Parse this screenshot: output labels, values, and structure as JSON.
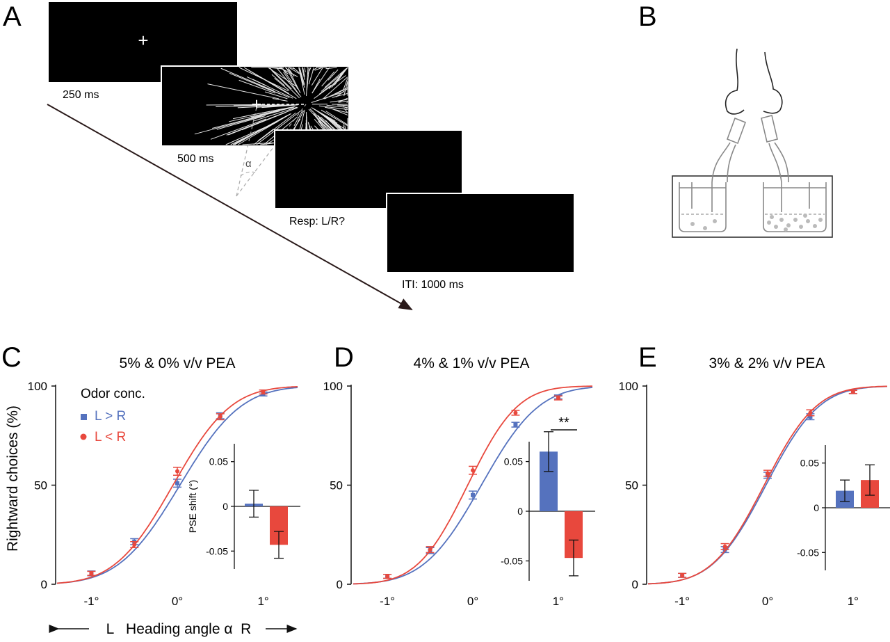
{
  "panel_letters": {
    "a": "A",
    "b": "B",
    "c": "C",
    "d": "D",
    "e": "E"
  },
  "timeline": {
    "fixation_duration": "250 ms",
    "stimulus_duration": "500 ms",
    "response_label": "Resp: L/R?",
    "iti_label": "ITI: 1000 ms",
    "angle_symbol": "α",
    "fixation_symbol": "+"
  },
  "axis": {
    "y_label": "Rightward choices (%)",
    "x_label": "L   Heading angle α  R",
    "y_ticks": [
      "0",
      "50",
      "100"
    ],
    "x_ticks": [
      "-1°",
      "0°",
      "1°"
    ],
    "inset_y_label": "PSE shift (°)",
    "inset_ticks": [
      "0.05",
      "0",
      "-0.05"
    ]
  },
  "legend": {
    "title": "Odor conc.",
    "blue_label": "L > R",
    "red_label": "L < R"
  },
  "colors": {
    "blue": "#5572be",
    "red": "#e8483d",
    "axis": "#111111"
  },
  "significance": "**",
  "chart_data": [
    {
      "type": "line",
      "title": "5% & 0% v/v PEA",
      "xlabel": "Heading angle α",
      "ylabel": "Rightward choices (%)",
      "xlim": [
        -1.4,
        1.4
      ],
      "ylim": [
        0,
        100
      ],
      "series": [
        {
          "name": "L > R",
          "color": "#5572be",
          "x": [
            -1.0,
            -0.5,
            0.0,
            0.5,
            1.0
          ],
          "y": [
            5.5,
            21.5,
            51.0,
            85.0,
            96.0
          ],
          "err": [
            1.2,
            1.5,
            2.0,
            1.5,
            1.0
          ],
          "fit": {
            "mu": 0.03,
            "sigma": 0.56
          }
        },
        {
          "name": "L < R",
          "color": "#e8483d",
          "x": [
            -1.0,
            -0.5,
            0.0,
            0.5,
            1.0
          ],
          "y": [
            5.5,
            20.0,
            57.0,
            84.5,
            97.0
          ],
          "err": [
            1.0,
            1.5,
            2.0,
            1.5,
            1.0
          ],
          "fit": {
            "mu": -0.05,
            "sigma": 0.53
          }
        }
      ],
      "inset": {
        "type": "bar",
        "ylabel": "PSE shift (°)",
        "ylim": [
          -0.07,
          0.07
        ],
        "bars": [
          {
            "name": "L > R",
            "value": 0.003,
            "err": 0.015,
            "color": "#5572be"
          },
          {
            "name": "L < R",
            "value": -0.043,
            "err": 0.015,
            "color": "#e8483d"
          }
        ]
      }
    },
    {
      "type": "line",
      "title": "4% & 1% v/v PEA",
      "xlabel": "Heading angle α",
      "ylabel": "Rightward choices (%)",
      "xlim": [
        -1.4,
        1.4
      ],
      "ylim": [
        0,
        100
      ],
      "series": [
        {
          "name": "L > R",
          "color": "#5572be",
          "x": [
            -1.0,
            -0.5,
            0.0,
            0.5,
            1.0
          ],
          "y": [
            4.0,
            17.0,
            45.0,
            80.5,
            94.5
          ],
          "err": [
            1.0,
            1.5,
            2.0,
            1.2,
            1.0
          ],
          "fit": {
            "mu": 0.1,
            "sigma": 0.53
          }
        },
        {
          "name": "L < R",
          "color": "#e8483d",
          "x": [
            -1.0,
            -0.5,
            0.0,
            0.5,
            1.0
          ],
          "y": [
            4.0,
            17.5,
            57.5,
            86.5,
            94.0
          ],
          "err": [
            1.0,
            1.5,
            2.0,
            1.2,
            1.0
          ],
          "fit": {
            "mu": -0.06,
            "sigma": 0.46
          }
        }
      ],
      "inset": {
        "type": "bar",
        "ylabel": "",
        "ylim": [
          -0.07,
          0.07
        ],
        "bars": [
          {
            "name": "L > R",
            "value": 0.06,
            "err": 0.02,
            "color": "#5572be"
          },
          {
            "name": "L < R",
            "value": -0.047,
            "err": 0.018,
            "color": "#e8483d"
          }
        ]
      }
    },
    {
      "type": "line",
      "title": "3% & 2% v/v PEA",
      "xlabel": "Heading angle α",
      "ylabel": "Rightward choices (%)",
      "xlim": [
        -1.4,
        1.4
      ],
      "ylim": [
        0,
        100
      ],
      "series": [
        {
          "name": "L > R",
          "color": "#5572be",
          "x": [
            -1.0,
            -0.5,
            0.0,
            0.5,
            1.0
          ],
          "y": [
            4.5,
            17.5,
            55.0,
            84.5,
            97.0
          ],
          "err": [
            1.0,
            1.5,
            1.5,
            1.5,
            0.8
          ],
          "fit": {
            "mu": -0.02,
            "sigma": 0.49
          }
        },
        {
          "name": "L < R",
          "color": "#e8483d",
          "x": [
            -1.0,
            -0.5,
            0.0,
            0.5,
            1.0
          ],
          "y": [
            4.5,
            19.0,
            56.0,
            86.5,
            97.0
          ],
          "err": [
            1.0,
            1.5,
            1.5,
            1.5,
            0.8
          ],
          "fit": {
            "mu": -0.04,
            "sigma": 0.48
          }
        }
      ],
      "inset": {
        "type": "bar",
        "ylabel": "",
        "ylim": [
          -0.07,
          0.07
        ],
        "bars": [
          {
            "name": "L > R",
            "value": 0.019,
            "err": 0.012,
            "color": "#5572be"
          },
          {
            "name": "L < R",
            "value": 0.031,
            "err": 0.017,
            "color": "#e8483d"
          }
        ]
      }
    }
  ]
}
